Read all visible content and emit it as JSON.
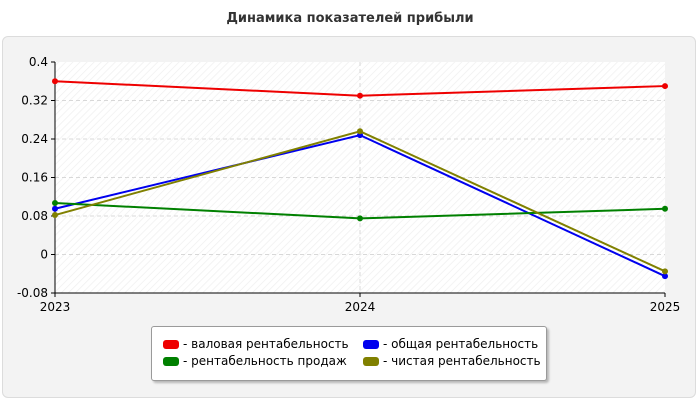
{
  "chart_data": {
    "type": "line",
    "title": "Динамика показателей прибыли",
    "x": [
      "2023",
      "2024",
      "2025"
    ],
    "ylim": [
      -0.08,
      0.4
    ],
    "yticks": [
      "0.4",
      "0.32",
      "0.24",
      "0.16",
      "0.08",
      "0",
      "-0.08"
    ],
    "ytick_values": [
      0.4,
      0.32,
      0.24,
      0.16,
      0.08,
      0,
      -0.08
    ],
    "grid": true,
    "legend_position": "bottom",
    "series": [
      {
        "name": "валовая рентабельность",
        "color": "#ee0000",
        "values": [
          0.36,
          0.33,
          0.35
        ]
      },
      {
        "name": "общая рентабельность",
        "color": "#0000ee",
        "values": [
          0.095,
          0.248,
          -0.045
        ]
      },
      {
        "name": "рентабельность продаж",
        "color": "#008000",
        "values": [
          0.107,
          0.075,
          0.095
        ]
      },
      {
        "name": "чистая рентабельность",
        "color": "#808000",
        "values": [
          0.082,
          0.256,
          -0.035
        ]
      }
    ]
  },
  "legend": {
    "items": [
      {
        "label": "- валовая рентабельность",
        "color": "#ee0000"
      },
      {
        "label": "- общая рентабельность",
        "color": "#0000ee"
      },
      {
        "label": "- рентабельность продаж",
        "color": "#008000"
      },
      {
        "label": "- чистая рентабельность",
        "color": "#808000"
      }
    ]
  }
}
